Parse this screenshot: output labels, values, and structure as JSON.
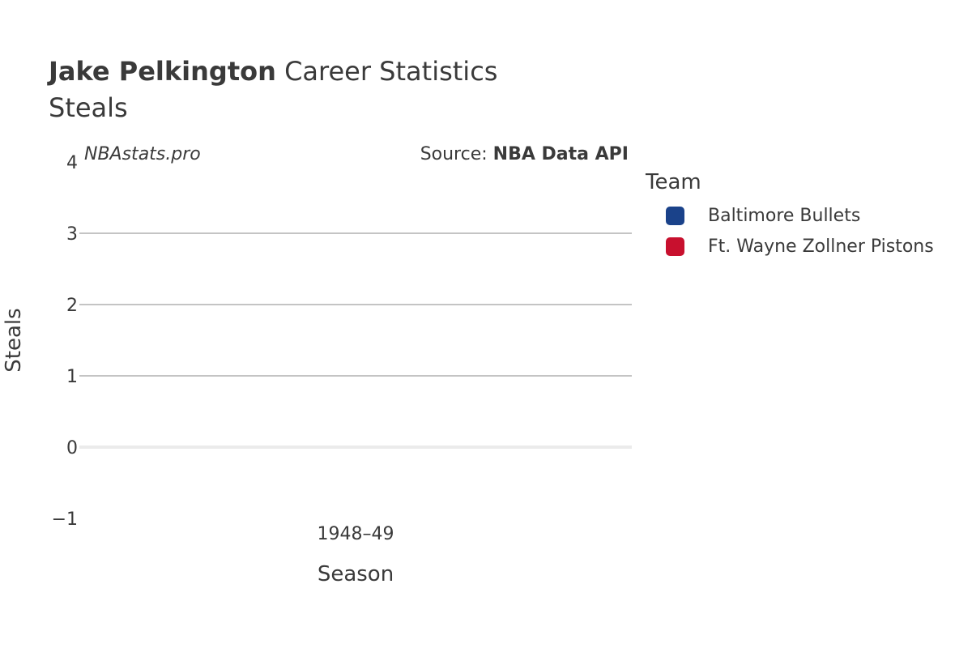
{
  "header": {
    "title_bold": "Jake Pelkington",
    "title_rest": "Career Statistics",
    "subtitle": "Steals"
  },
  "watermark": "NBAstats.pro",
  "source": {
    "prefix": "Source: ",
    "name": "NBA Data API"
  },
  "legend": {
    "title": "Team",
    "items": [
      {
        "label": "Baltimore Bullets",
        "color": "#1a428a"
      },
      {
        "label": "Ft. Wayne Zollner Pistons",
        "color": "#c8102e"
      }
    ]
  },
  "chart_data": {
    "type": "bar",
    "title": "Steals",
    "xlabel": "Season",
    "ylabel": "Steals",
    "categories": [
      "1948–49"
    ],
    "series": [
      {
        "name": "Baltimore Bullets",
        "values": [
          null
        ]
      },
      {
        "name": "Ft. Wayne Zollner Pistons",
        "values": [
          null
        ]
      }
    ],
    "ylim": [
      -1,
      4
    ],
    "yticks": [
      -1,
      0,
      1,
      2,
      3,
      4
    ],
    "ytick_labels": [
      "−1",
      "0",
      "1",
      "2",
      "3",
      "4"
    ],
    "grid": true,
    "legend_position": "right"
  }
}
